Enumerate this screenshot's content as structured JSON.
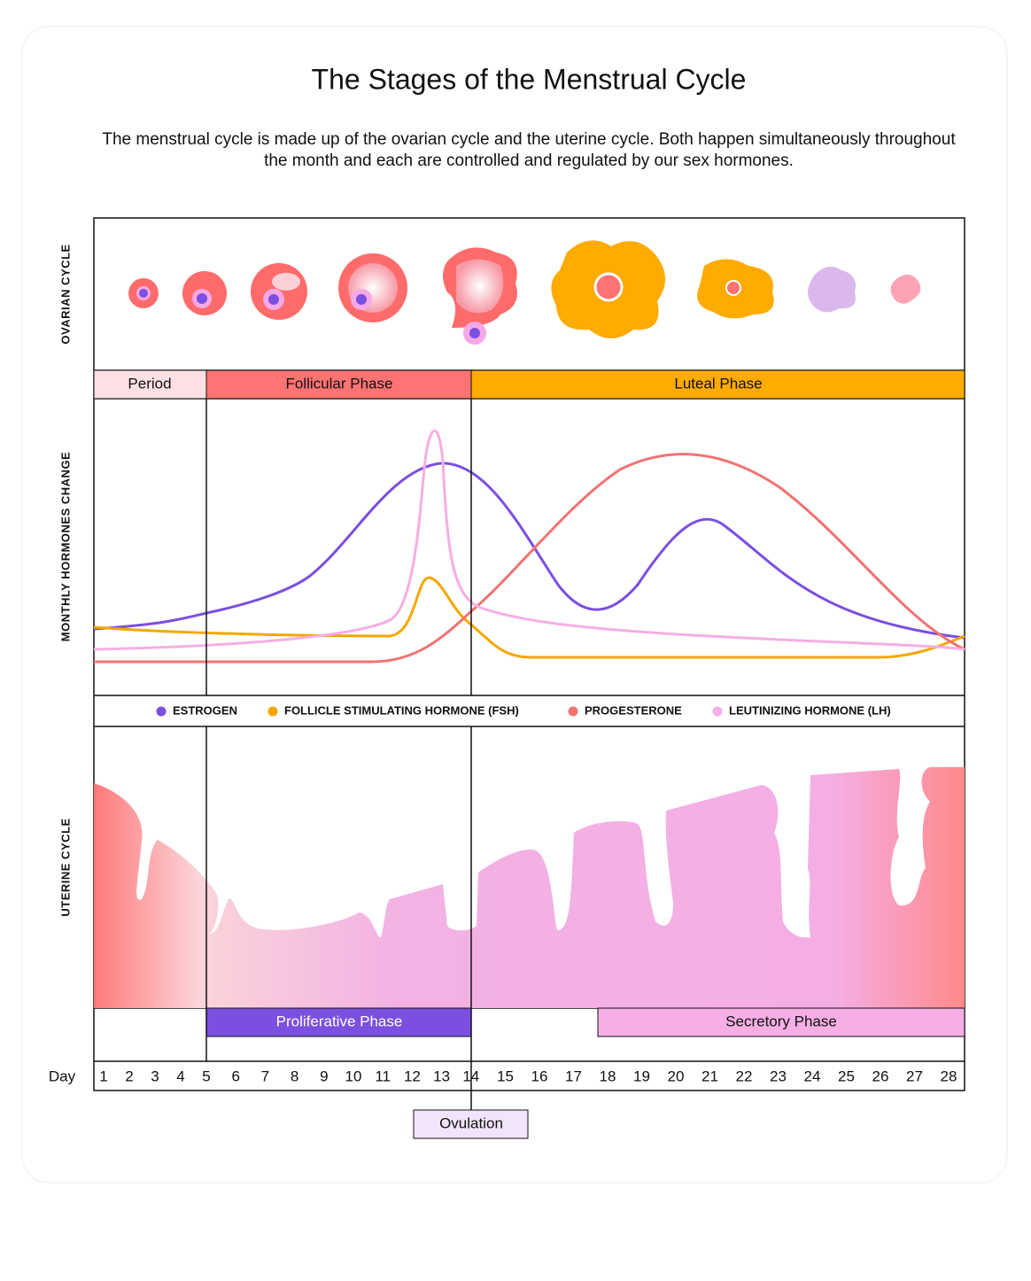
{
  "header": {
    "title": "The Stages of the Menstrual Cycle",
    "subtitle": "The menstrual cycle is made up of the ovarian cycle and the uterine cycle. Both happen simultaneously throughout the month and each are controlled and regulated by our sex hormones."
  },
  "rows": {
    "ovarian": "OVARIAN  CYCLE",
    "hormones": "MONTHLY HORMONES CHANGE",
    "uterine": "UTERINE CYCLE"
  },
  "ovarian_phases": [
    "Period",
    "Follicular Phase",
    "Luteal Phase"
  ],
  "legend": [
    "ESTROGEN",
    "FOLLICLE STIMULATING HORMONE (FSH)",
    "PROGESTERONE",
    "LEUTINIZING HORMONE (LH)"
  ],
  "uterine_phases": [
    "Proliferative Phase",
    "Secretory Phase"
  ],
  "days": {
    "label": "Day",
    "values": [
      1,
      2,
      3,
      4,
      5,
      6,
      7,
      8,
      9,
      10,
      11,
      12,
      13,
      14,
      15,
      16,
      17,
      18,
      19,
      20,
      21,
      22,
      23,
      24,
      25,
      26,
      27,
      28
    ]
  },
  "ovulation": "Ovulation"
}
